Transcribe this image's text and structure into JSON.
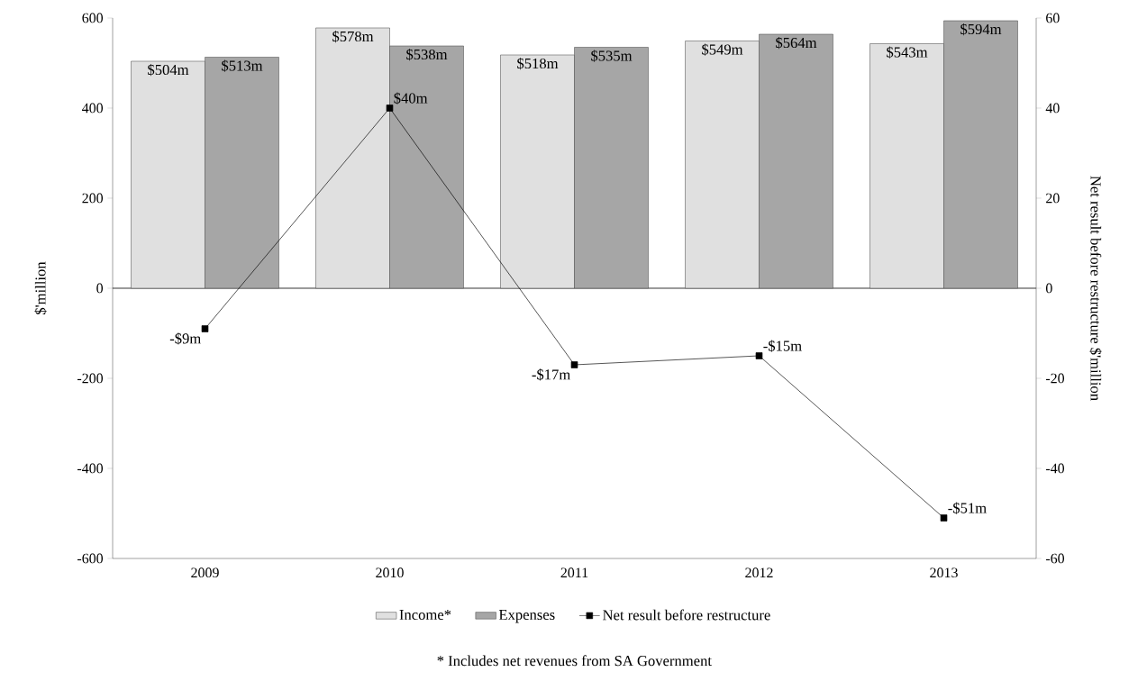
{
  "chart_data": {
    "type": "bar",
    "categories": [
      "2009",
      "2010",
      "2011",
      "2012",
      "2013"
    ],
    "series": [
      {
        "name": "Income*",
        "color": "#e0e0e0",
        "values": [
          504,
          578,
          518,
          549,
          543
        ],
        "value_labels": [
          "$504m",
          "$578m",
          "$518m",
          "$549m",
          "$543m"
        ]
      },
      {
        "name": "Expenses",
        "color": "#a6a6a6",
        "values": [
          513,
          538,
          535,
          564,
          594
        ],
        "value_labels": [
          "$513m",
          "$538m",
          "$535m",
          "$564m",
          "$594m"
        ]
      },
      {
        "name": "Net result before restructure",
        "type": "line",
        "axis": "y2",
        "color": "#000000",
        "marker": "square",
        "values": [
          -9,
          40,
          -17,
          -15,
          -51
        ],
        "value_labels": [
          "-$9m",
          "$40m",
          "-$17m",
          "-$15m",
          "-$51m"
        ]
      }
    ],
    "ylabel": "$'million",
    "y2label": "Net result before restructure $'million",
    "ylim": [
      -600,
      600
    ],
    "yticks": [
      -600,
      -400,
      -200,
      0,
      200,
      400,
      600
    ],
    "y2lim": [
      -60,
      60
    ],
    "y2ticks": [
      -60,
      -40,
      -20,
      0,
      20,
      40,
      60
    ],
    "legend": "bottom",
    "annotations": [
      "*  Includes net revenues from SA Government"
    ]
  }
}
